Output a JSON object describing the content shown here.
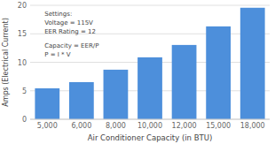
{
  "chart_data": {
    "type": "bar",
    "categories": [
      "5,000",
      "6,000",
      "8,000",
      "10,000",
      "12,000",
      "15,000",
      "18,000"
    ],
    "values": [
      5.43,
      6.52,
      8.7,
      10.87,
      13.04,
      16.3,
      19.57
    ],
    "color": "#4d8fdb",
    "xlabel": "Air Conditioner Capacity (in BTU)",
    "ylabel": "Amps (Electrical Current)",
    "ylim": [
      0,
      20
    ],
    "yticks": [
      0,
      5,
      10,
      15,
      20
    ],
    "grid": true,
    "annotations": [
      "Settings:\nVoltage = 115V\nEER Rating = 12",
      "Capacity = EER/P\nP = I * V"
    ]
  }
}
